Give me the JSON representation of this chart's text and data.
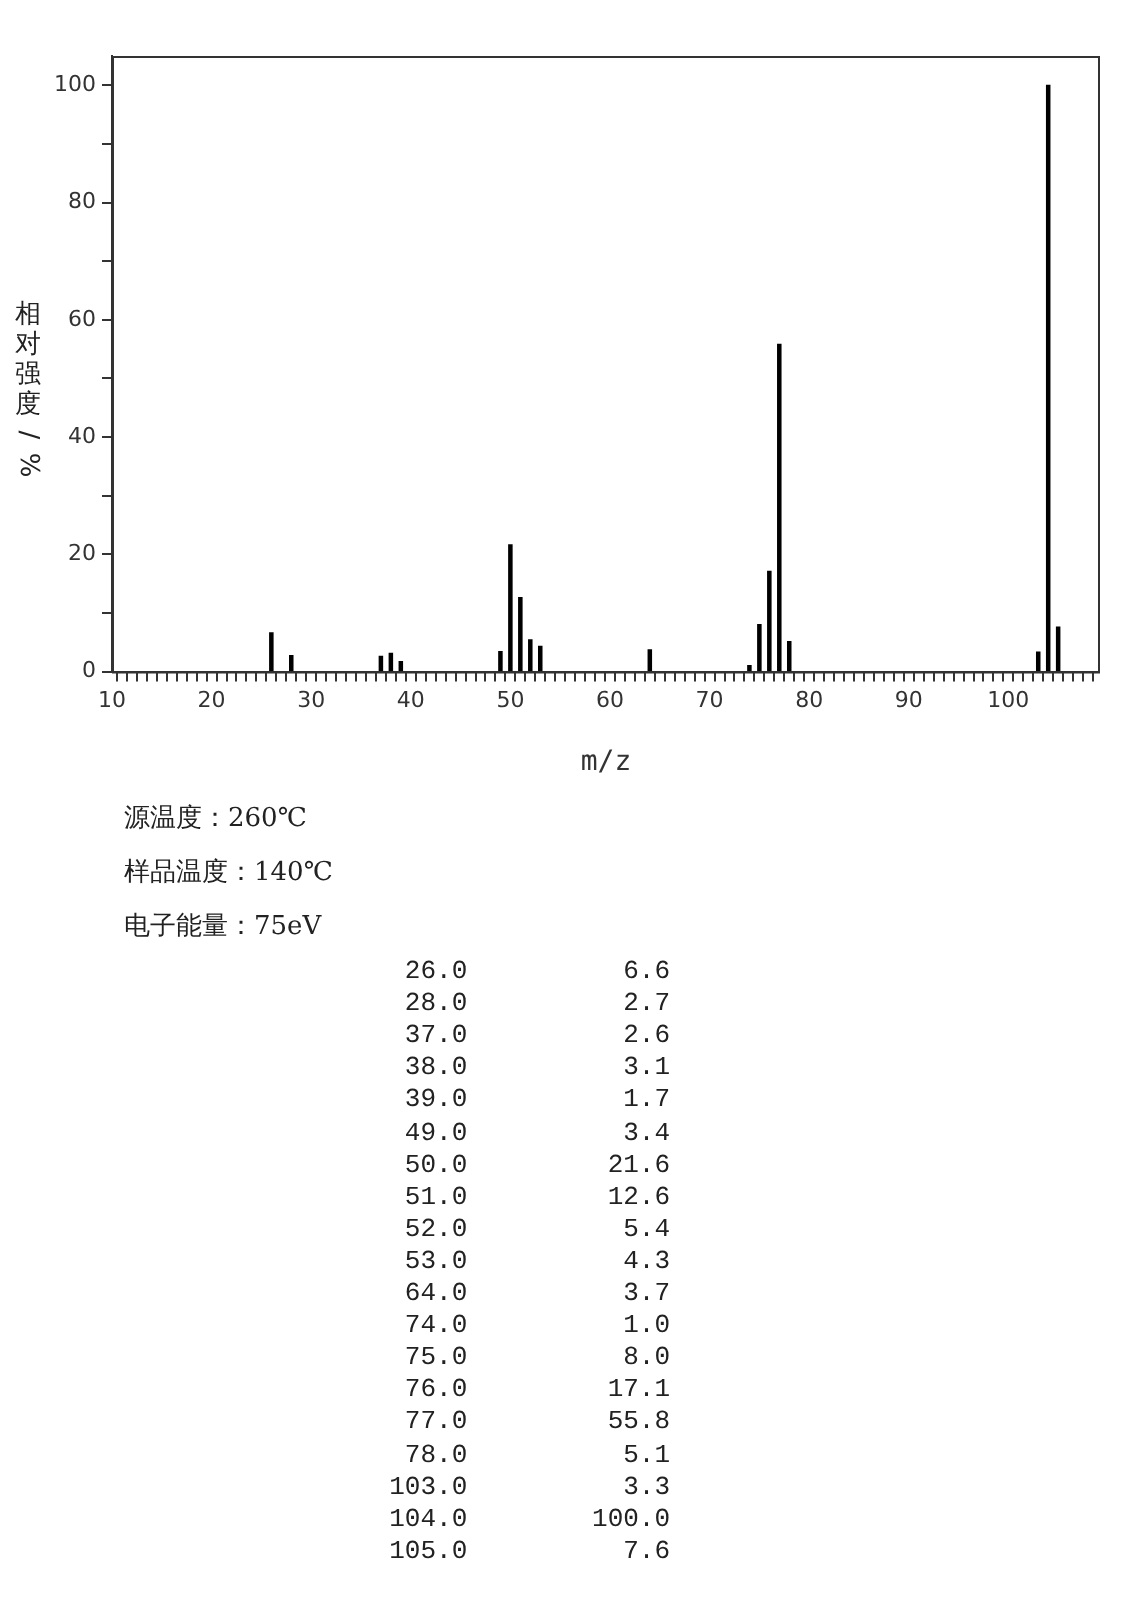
{
  "chart_data": {
    "type": "bar",
    "xlabel": "m/z",
    "ylabel": "相对强度/%",
    "x": [
      26,
      28,
      37,
      38,
      39,
      49,
      50,
      51,
      52,
      53,
      64,
      74,
      75,
      76,
      77,
      78,
      103,
      104,
      105
    ],
    "values": [
      6.6,
      2.7,
      2.6,
      3.1,
      1.7,
      3.4,
      21.6,
      12.6,
      5.4,
      4.3,
      3.7,
      1.0,
      8.0,
      17.1,
      55.8,
      5.1,
      3.3,
      100.0,
      7.6
    ],
    "color": "#000000",
    "xlim": [
      10,
      109
    ],
    "xticks": [
      10,
      {
        "value": 11,
        "label": null
      },
      {
        "value": 12,
        "label": null
      },
      {
        "value": 13,
        "label": null
      },
      {
        "value": 14,
        "label": null
      },
      {
        "value": 15,
        "label": null
      },
      {
        "value": 16,
        "label": null
      },
      {
        "value": 17,
        "label": null
      },
      {
        "value": 18,
        "label": null
      },
      {
        "value": 19,
        "label": null
      },
      20,
      {
        "value": 21,
        "label": null
      },
      {
        "value": 22,
        "label": null
      },
      {
        "value": 23,
        "label": null
      },
      {
        "value": 24,
        "label": null
      },
      {
        "value": 25,
        "label": null
      },
      {
        "value": 26,
        "label": null
      },
      {
        "value": 27,
        "label": null
      },
      {
        "value": 28,
        "label": null
      },
      {
        "value": 29,
        "label": null
      },
      30,
      {
        "value": 31,
        "label": null
      },
      {
        "value": 32,
        "label": null
      },
      {
        "value": 33,
        "label": null
      },
      {
        "value": 34,
        "label": null
      },
      {
        "value": 35,
        "label": null
      },
      {
        "value": 36,
        "label": null
      },
      {
        "value": 37,
        "label": null
      },
      {
        "value": 38,
        "label": null
      },
      {
        "value": 39,
        "label": null
      },
      40,
      {
        "value": 41,
        "label": null
      },
      {
        "value": 42,
        "label": null
      },
      {
        "value": 43,
        "label": null
      },
      {
        "value": 44,
        "label": null
      },
      {
        "value": 45,
        "label": null
      },
      {
        "value": 46,
        "label": null
      },
      {
        "value": 47,
        "label": null
      },
      {
        "value": 48,
        "label": null
      },
      {
        "value": 49,
        "label": null
      },
      50,
      {
        "value": 51,
        "label": null
      },
      {
        "value": 52,
        "label": null
      },
      {
        "value": 53,
        "label": null
      },
      {
        "value": 54,
        "label": null
      },
      {
        "value": 55,
        "label": null
      },
      {
        "value": 56,
        "label": null
      },
      {
        "value": 57,
        "label": null
      },
      {
        "value": 58,
        "label": null
      },
      {
        "value": 59,
        "label": null
      },
      60,
      {
        "value": 61,
        "label": null
      },
      {
        "value": 62,
        "label": null
      },
      {
        "value": 63,
        "label": null
      },
      {
        "value": 64,
        "label": null
      },
      {
        "value": 65,
        "label": null
      },
      {
        "value": 66,
        "label": null
      },
      {
        "value": 67,
        "label": null
      },
      {
        "value": 68,
        "label": null
      },
      {
        "value": 69,
        "label": null
      },
      70,
      {
        "value": 71,
        "label": null
      },
      {
        "value": 72,
        "label": null
      },
      {
        "value": 73,
        "label": null
      },
      {
        "value": 74,
        "label": null
      },
      {
        "value": 75,
        "label": null
      },
      {
        "value": 76,
        "label": null
      },
      {
        "value": 77,
        "label": null
      },
      {
        "value": 78,
        "label": null
      },
      {
        "value": 79,
        "label": null
      },
      80,
      {
        "value": 81,
        "label": null
      },
      {
        "value": 82,
        "label": null
      },
      {
        "value": 83,
        "label": null
      },
      {
        "value": 84,
        "label": null
      },
      {
        "value": 85,
        "label": null
      },
      {
        "value": 86,
        "label": null
      },
      {
        "value": 87,
        "label": null
      },
      {
        "value": 88,
        "label": null
      },
      {
        "value": 89,
        "label": null
      },
      90,
      {
        "value": 91,
        "label": null
      },
      {
        "value": 92,
        "label": null
      },
      {
        "value": 93,
        "label": null
      },
      {
        "value": 94,
        "label": null
      },
      {
        "value": 95,
        "label": null
      },
      {
        "value": 96,
        "label": null
      },
      {
        "value": 97,
        "label": null
      },
      {
        "value": 98,
        "label": null
      },
      {
        "value": 99,
        "label": null
      },
      100,
      {
        "value": 101,
        "label": null
      },
      {
        "value": 102,
        "label": null
      },
      {
        "value": 103,
        "label": null
      },
      {
        "value": 104,
        "label": null
      },
      {
        "value": 105,
        "label": null
      },
      {
        "value": 106,
        "label": null
      },
      {
        "value": 107,
        "label": null
      },
      {
        "value": 108,
        "label": null
      }
    ],
    "ylim": [
      0,
      105
    ],
    "yticks": [
      0,
      {
        "value": 10,
        "label": null
      },
      20,
      {
        "value": 30,
        "label": null
      },
      40,
      {
        "value": 50,
        "label": null
      },
      60,
      {
        "value": 70,
        "label": null
      },
      80,
      {
        "value": 90,
        "label": null
      },
      100
    ],
    "annotations": [
      "源温度：260℃",
      "样品温度：140℃",
      "电子能量：75eV",
      "26.0 6.6",
      "28.0 2.7",
      "37.0 2.6",
      "38.0 3.1",
      "39.0 1.7",
      "49.0 3.4",
      "50.0 21.6",
      "51.0 12.6",
      "52.0 5.4",
      "53.0 4.3",
      "64.0 3.7",
      "74.0 1.0",
      "75.0 8.0",
      "76.0 17.1",
      "77.0 55.8",
      "78.0 5.1",
      "103.0 3.3",
      "104.0 100.0",
      "105.0 7.6"
    ]
  }
}
